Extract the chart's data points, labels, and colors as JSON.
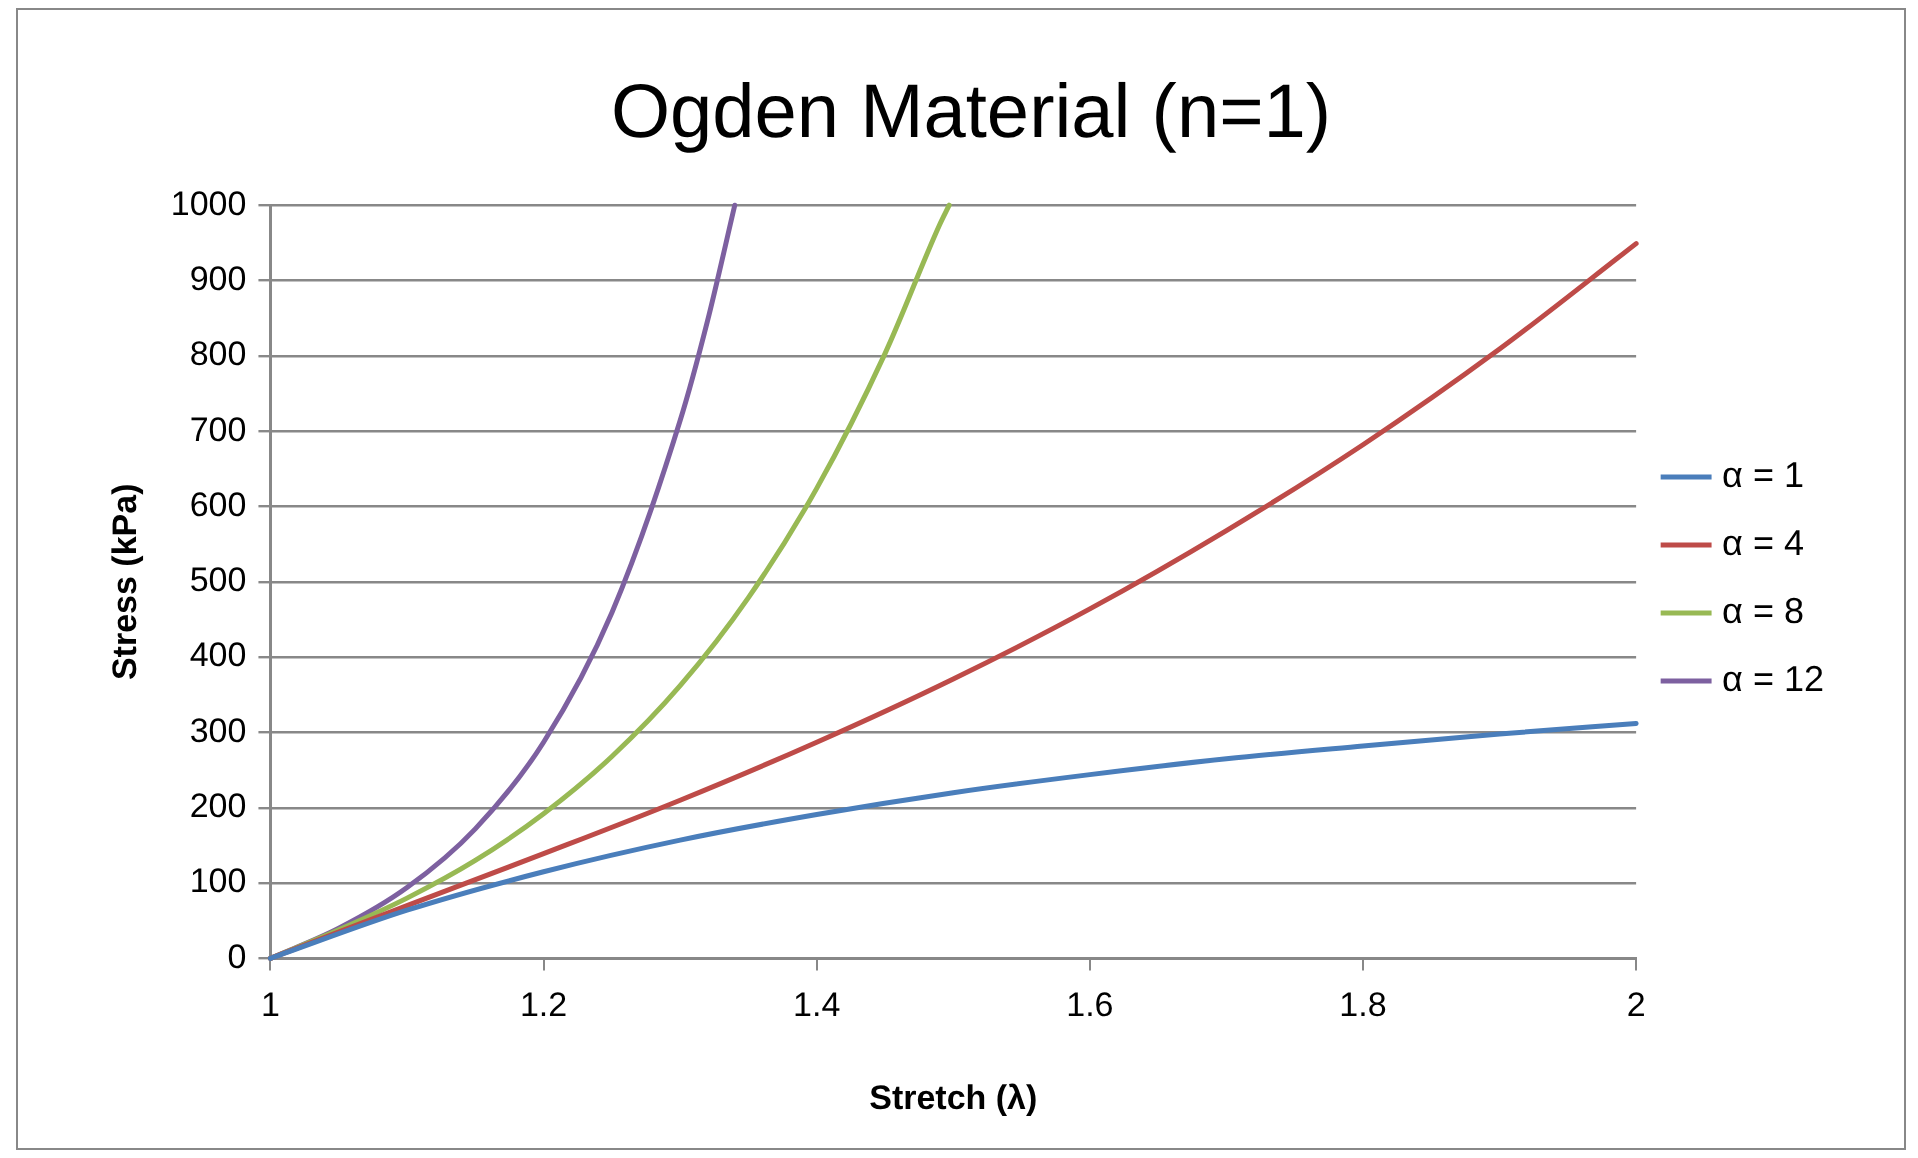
{
  "chart_data": {
    "type": "line",
    "title": "Ogden Material (n=1)",
    "xlabel": "Stretch (λ)",
    "ylabel": "Stress (kPa)",
    "xlim": [
      1,
      2
    ],
    "xticks": [
      1,
      1.2,
      1.4,
      1.6,
      1.8,
      2
    ],
    "ylim": [
      0,
      1000
    ],
    "yticks": [
      0,
      100,
      200,
      300,
      400,
      500,
      600,
      700,
      800,
      900,
      1000
    ],
    "grid": "y",
    "legend": "right",
    "marker": "none",
    "line_style": "solid",
    "series": [
      {
        "name": "α = 1",
        "color": "#4a7ebb",
        "x": [
          1,
          1.1,
          1.2,
          1.3,
          1.4,
          1.5,
          1.6,
          1.7,
          1.8,
          1.9,
          2
        ],
        "values": [
          0,
          64,
          115,
          157,
          191,
          220,
          244,
          265,
          282,
          298,
          312
        ]
      },
      {
        "name": "α = 4",
        "color": "#be4b48",
        "x": [
          1,
          1.1,
          1.2,
          1.3,
          1.4,
          1.5,
          1.6,
          1.7,
          1.8,
          1.9,
          2
        ],
        "values": [
          0,
          70,
          139,
          210,
          287,
          371,
          464,
          568,
          682,
          809,
          949
        ]
      },
      {
        "name": "α = 8",
        "color": "#98b954",
        "x": [
          1,
          1.05,
          1.1,
          1.15,
          1.2,
          1.25,
          1.3,
          1.35,
          1.4,
          1.45,
          1.49,
          1.497
        ],
        "values": [
          0,
          38,
          80,
          130,
          192,
          268,
          362,
          479,
          624,
          803,
          974,
          1000
        ]
      },
      {
        "name": "α = 12",
        "color": "#7d60a0",
        "x": [
          1,
          1.05,
          1.1,
          1.15,
          1.2,
          1.25,
          1.3,
          1.32,
          1.34
        ],
        "values": [
          0,
          40,
          94,
          172,
          287,
          459,
          714,
          846,
          1000
        ]
      }
    ]
  }
}
